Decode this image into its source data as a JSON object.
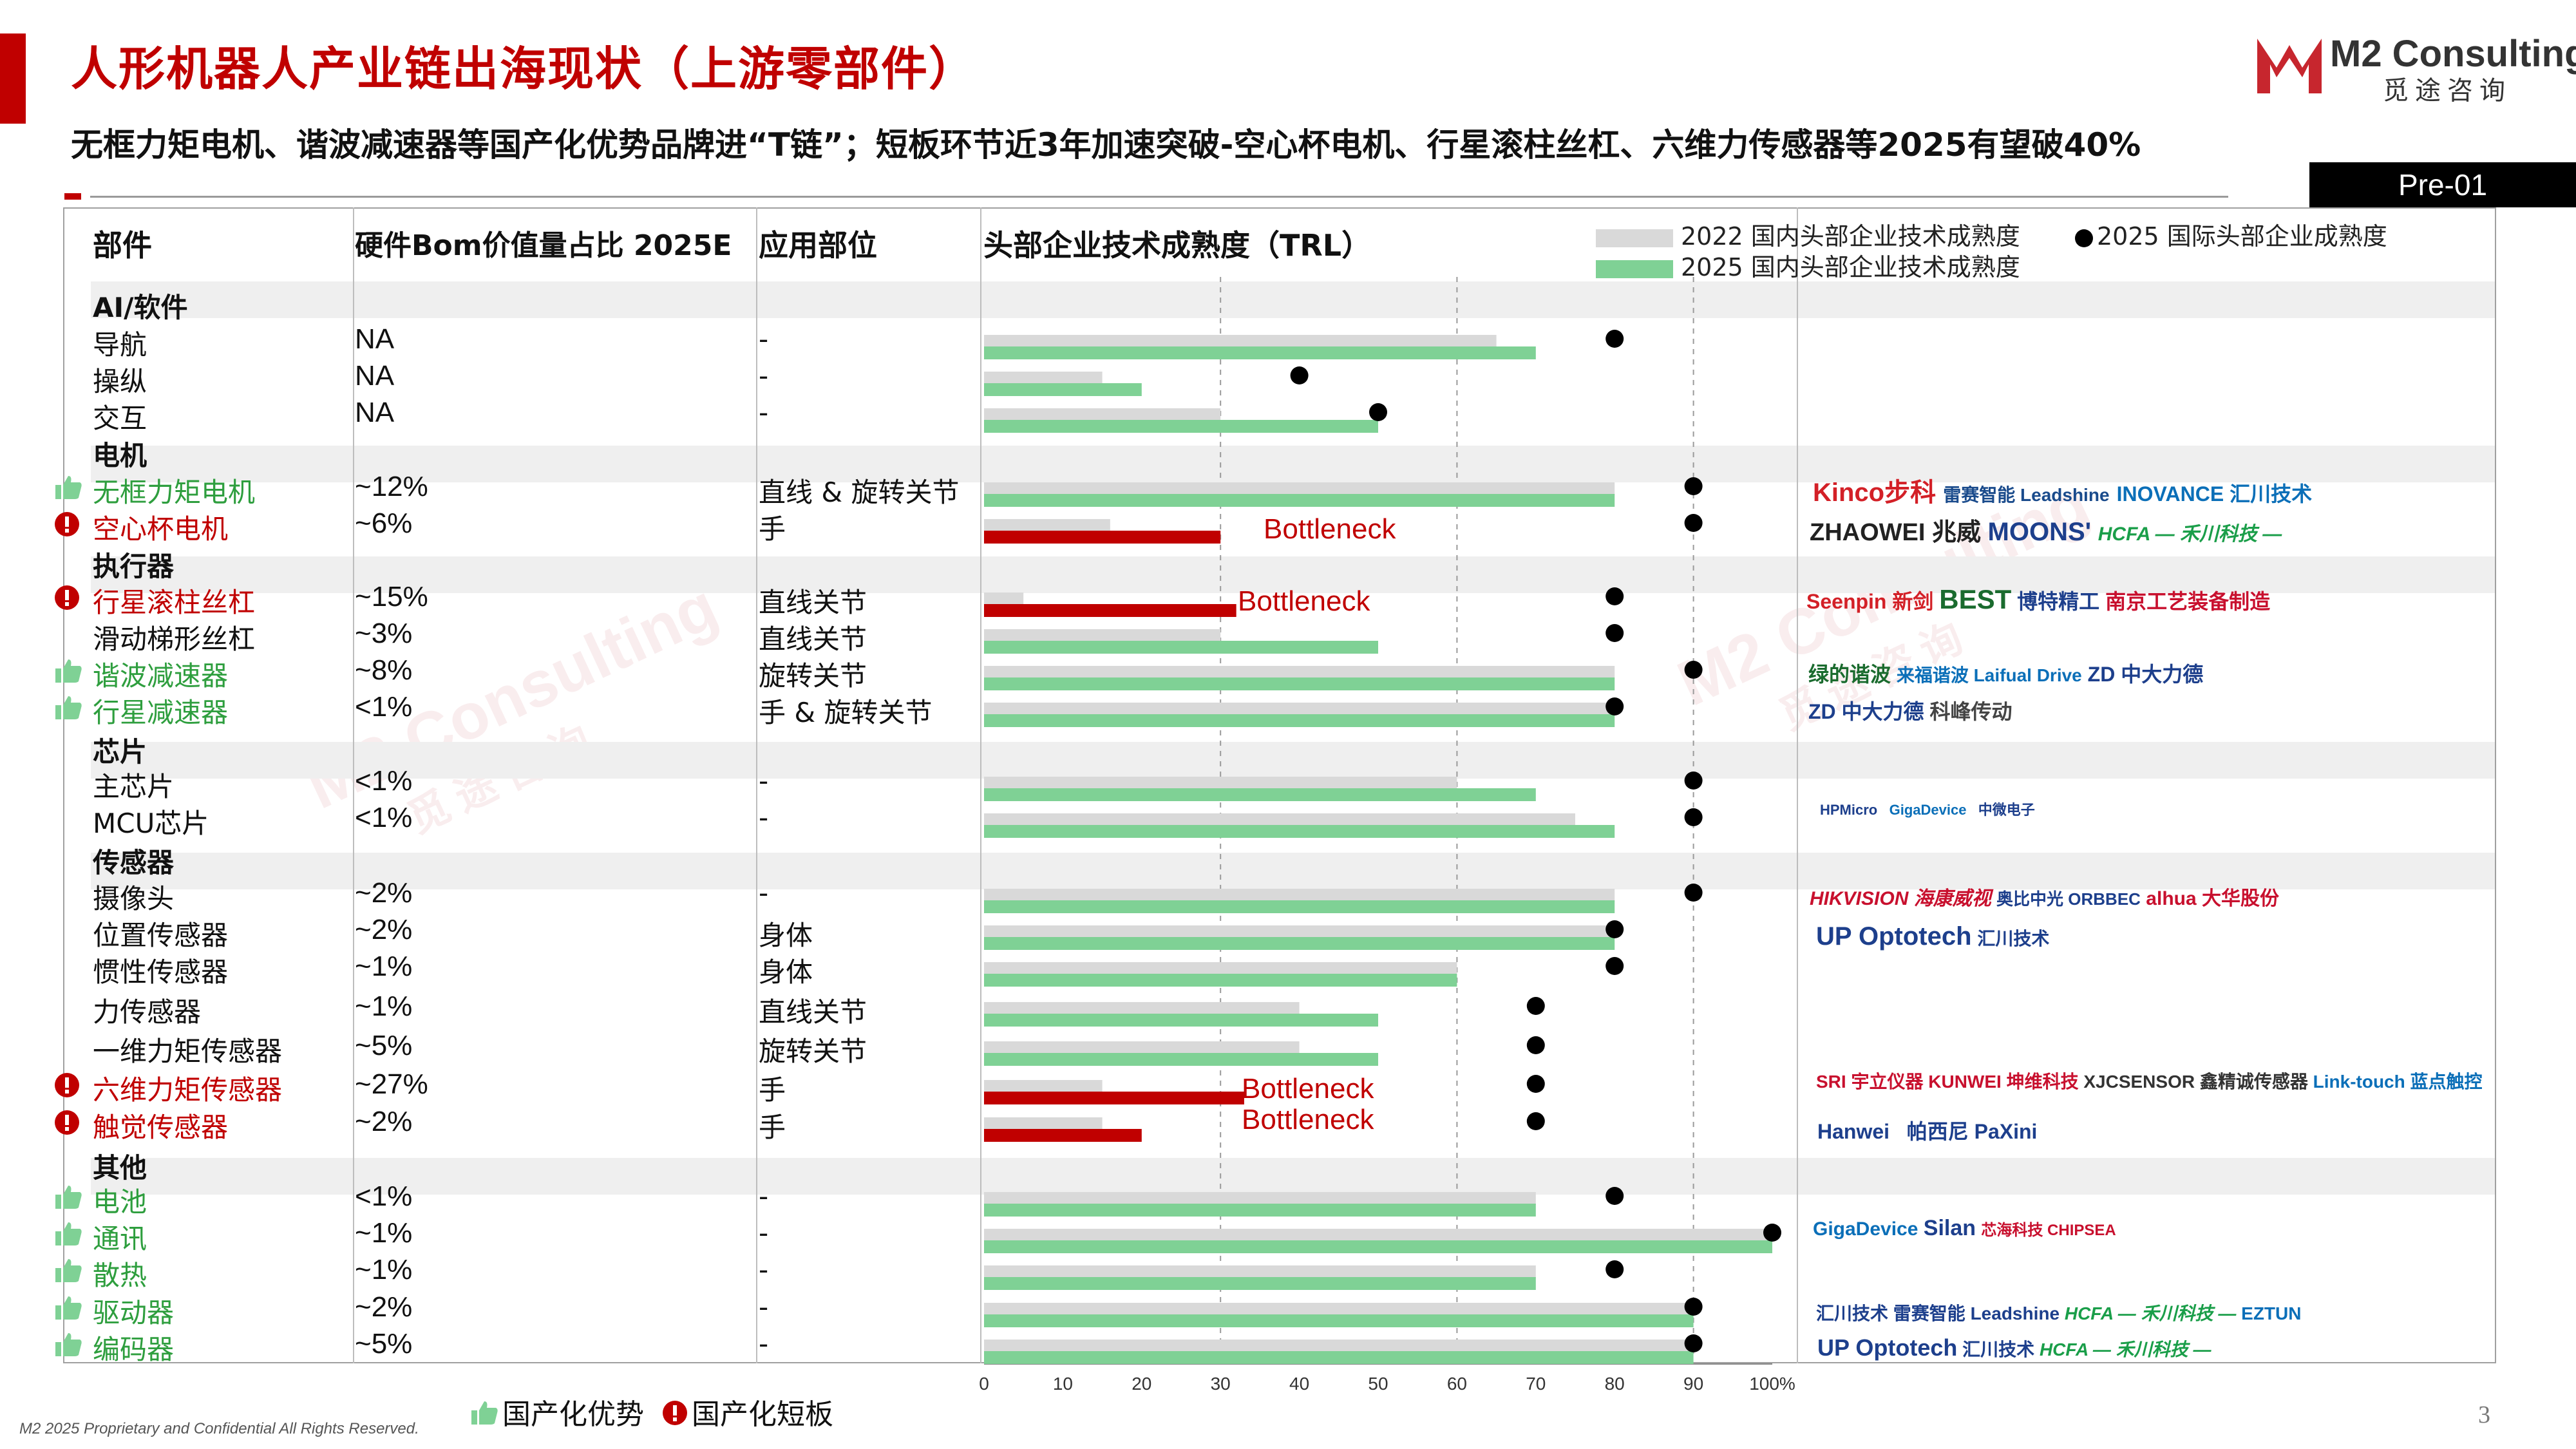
{
  "title": "人形机器人产业链出海现状（上游零部件）",
  "logo": {
    "name": "M2 Consulting",
    "sub": "觅途咨询"
  },
  "subtitle": "无框力矩电机、谐波减速器等国产化优势品牌进“T链”；短板环节近3年加速突破-空心杯电机、行星滚柱丝杠、六维力传感器等2025有望破40%",
  "page_tag": "Pre-01",
  "columns": {
    "component": "部件",
    "bom": "硬件Bom价值量占比 2025E",
    "position": "应用部位",
    "trl": "头部企业技术成熟度（TRL）"
  },
  "colors": {
    "y2022": "#d9d9d9",
    "y2025": "#7fd195",
    "bottleneck": "#c00000",
    "accent": "#c00000",
    "advantage": "#2e9e3e"
  },
  "categories": [
    "AI/软件",
    "电机",
    "执行器",
    "芯片",
    "传感器",
    "其他"
  ],
  "rows": [
    {
      "name": "导航",
      "bom": "NA",
      "pos": "-",
      "mark": "none"
    },
    {
      "name": "操纵",
      "bom": "NA",
      "pos": "-",
      "mark": "none"
    },
    {
      "name": "交互",
      "bom": "NA",
      "pos": "-",
      "mark": "none"
    },
    {
      "name": "无框力矩电机",
      "bom": "~12%",
      "pos": "直线 & 旋转关节",
      "mark": "advantage"
    },
    {
      "name": "空心杯电机",
      "bom": "~6%",
      "pos": "手",
      "mark": "shortboard"
    },
    {
      "name": "行星滚柱丝杠",
      "bom": "~15%",
      "pos": "直线关节",
      "mark": "shortboard"
    },
    {
      "name": "滑动梯形丝杠",
      "bom": "~3%",
      "pos": "直线关节",
      "mark": "none"
    },
    {
      "name": "谐波减速器",
      "bom": "~8%",
      "pos": "旋转关节",
      "mark": "advantage"
    },
    {
      "name": "行星减速器",
      "bom": "<1%",
      "pos": "手 & 旋转关节",
      "mark": "advantage"
    },
    {
      "name": "主芯片",
      "bom": "<1%",
      "pos": "-",
      "mark": "none"
    },
    {
      "name": "MCU芯片",
      "bom": "<1%",
      "pos": "-",
      "mark": "none"
    },
    {
      "name": "摄像头",
      "bom": "~2%",
      "pos": "-",
      "mark": "none"
    },
    {
      "name": "位置传感器",
      "bom": "~2%",
      "pos": "身体",
      "mark": "none"
    },
    {
      "name": "惯性传感器",
      "bom": "~1%",
      "pos": "身体",
      "mark": "none"
    },
    {
      "name": "力传感器",
      "bom": "~1%",
      "pos": "直线关节",
      "mark": "none"
    },
    {
      "name": "一维力矩传感器",
      "bom": "~5%",
      "pos": "旋转关节",
      "mark": "none"
    },
    {
      "name": "六维力矩传感器",
      "bom": "~27%",
      "pos": "手",
      "mark": "shortboard"
    },
    {
      "name": "触觉传感器",
      "bom": "~2%",
      "pos": "手",
      "mark": "shortboard"
    },
    {
      "name": "电池",
      "bom": "<1%",
      "pos": "-",
      "mark": "advantage"
    },
    {
      "name": "通讯",
      "bom": "~1%",
      "pos": "-",
      "mark": "advantage"
    },
    {
      "name": "散热",
      "bom": "~1%",
      "pos": "-",
      "mark": "advantage"
    },
    {
      "name": "驱动器",
      "bom": "~2%",
      "pos": "-",
      "mark": "advantage"
    },
    {
      "name": "编码器",
      "bom": "~5%",
      "pos": "-",
      "mark": "advantage"
    }
  ],
  "chart_data": {
    "type": "bar",
    "orientation": "horizontal",
    "title": "头部企业技术成熟度（TRL）",
    "categories": [
      "导航",
      "操纵",
      "交互",
      "无框力矩电机",
      "空心杯电机",
      "行星滚柱丝杠",
      "滑动梯形丝杠",
      "谐波减速器",
      "行星减速器",
      "主芯片",
      "MCU芯片",
      "摄像头",
      "位置传感器",
      "惯性传感器",
      "力传感器",
      "一维力矩传感器",
      "六维力矩传感器",
      "触觉传感器",
      "电池",
      "通讯",
      "散热",
      "驱动器",
      "编码器"
    ],
    "series": [
      {
        "name": "2022 国内头部企业技术成熟度",
        "values": [
          65,
          15,
          30,
          80,
          16,
          5,
          30,
          80,
          80,
          60,
          75,
          80,
          80,
          60,
          40,
          40,
          15,
          15,
          70,
          100,
          70,
          90,
          90
        ]
      },
      {
        "name": "2025 国内头部企业技术成熟度",
        "values": [
          70,
          20,
          50,
          80,
          30,
          32,
          50,
          80,
          80,
          70,
          80,
          80,
          80,
          60,
          50,
          50,
          33,
          20,
          70,
          100,
          70,
          90,
          90
        ]
      },
      {
        "name": "2025 国际头部企业成熟度",
        "values": [
          80,
          40,
          50,
          90,
          90,
          80,
          80,
          90,
          80,
          90,
          90,
          90,
          80,
          80,
          70,
          70,
          70,
          70,
          80,
          100,
          80,
          90,
          90
        ]
      }
    ],
    "bottleneck": [
      false,
      false,
      false,
      false,
      true,
      true,
      false,
      false,
      false,
      false,
      false,
      false,
      false,
      false,
      false,
      false,
      true,
      true,
      false,
      false,
      false,
      false,
      false
    ],
    "bottleneck_label": "Bottleneck",
    "xlim": [
      0,
      100
    ],
    "xticks": [
      "0",
      "10",
      "20",
      "30",
      "40",
      "50",
      "60",
      "70",
      "80",
      "90",
      "100%"
    ],
    "grid": "dashed at 30, 60, 90",
    "legend": "top"
  },
  "brands": {
    "motor_frameless": [
      "Kinco步科",
      "雷赛智能 Leadshine",
      "INOVANCE 汇川技术"
    ],
    "motor_coreless": [
      "ZHAOWEI 兆威",
      "MOONS'",
      "HCFA — 禾川科技 —"
    ],
    "screw": [
      "Seenpin 新剑",
      "BEST",
      "博特精工",
      "南京工艺装备制造"
    ],
    "harmonic": [
      "绿的谐波",
      "来福谐波 Laifual Drive",
      "ZD 中大力德"
    ],
    "planetary": [
      "ZD 中大力德",
      "科峰传动"
    ],
    "chip": [
      "HPMicro",
      "GigaDevice",
      "中微电子"
    ],
    "camera": [
      "HIKVISION 海康威视",
      "奥比中光 ORBBEC",
      "alhua 大华股份"
    ],
    "position": [
      "UP Optotech",
      "汇川技术"
    ],
    "force": [
      "SRI 宇立仪器",
      "KUNWEI 坤维科技",
      "XJCSENSOR 鑫精诚传感器",
      "Link-touch 蓝点触控"
    ],
    "tactile": [
      "Hanwei",
      "帕西尼 PaXini"
    ],
    "comms": [
      "GigaDevice",
      "Silan",
      "芯海科技 CHIPSEA"
    ],
    "driver": [
      "汇川技术",
      "雷赛智能 Leadshine",
      "HCFA — 禾川科技 —",
      "EZTUN"
    ],
    "encoder": [
      "UP Optotech",
      "汇川技术",
      "HCFA — 禾川科技 —"
    ]
  },
  "footer_legend": {
    "advantage": "国产化优势",
    "shortboard": "国产化短板"
  },
  "copyright": "M2 2025 Proprietary and Confidential All Rights Reserved.",
  "page_number": "3",
  "watermark": {
    "text": "M2 Consulting",
    "sub": "觅途咨询"
  }
}
